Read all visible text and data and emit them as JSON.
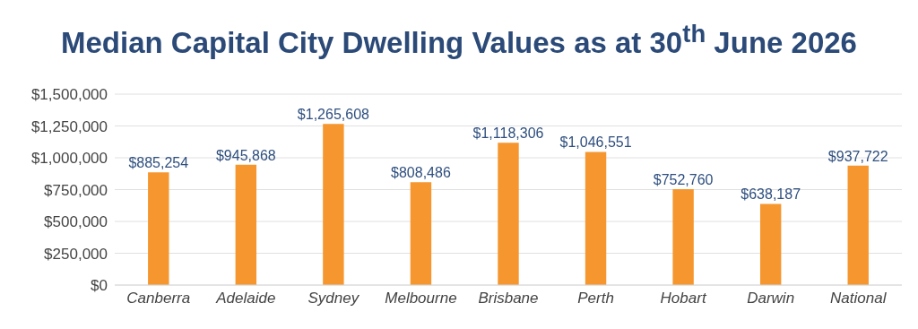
{
  "chart_data": {
    "type": "bar",
    "title": "Median Capital City Dwelling Values as at 30$^{th}$ June 2026",
    "categories": [
      "Canberra",
      "Adelaide",
      "Sydney",
      "Melbourne",
      "Brisbane",
      "Perth",
      "Hobart",
      "Darwin",
      "National"
    ],
    "values": [
      885254,
      945868,
      1265608,
      808486,
      1118306,
      1046551,
      752760,
      638187,
      937722
    ],
    "value_labels": [
      "$885,254",
      "$945,868",
      "$1,265,608",
      "$808,486",
      "$1,118,306",
      "$1,046,551",
      "$752,760",
      "$638,187",
      "$937,722"
    ],
    "color": "#f5962f",
    "ylim": [
      0,
      1500000
    ],
    "yticks": [
      {
        "value": 0,
        "label": "$0"
      },
      {
        "value": 250000,
        "label": "$250,000"
      },
      {
        "value": 500000,
        "label": "$500,000"
      },
      {
        "value": 750000,
        "label": "$750,000"
      },
      {
        "value": 1000000,
        "label": "$1,000,000"
      },
      {
        "value": 1250000,
        "label": "$1,250,000"
      },
      {
        "value": 1500000,
        "label": "$1,500,000"
      }
    ],
    "grid": "y",
    "legend": false
  }
}
